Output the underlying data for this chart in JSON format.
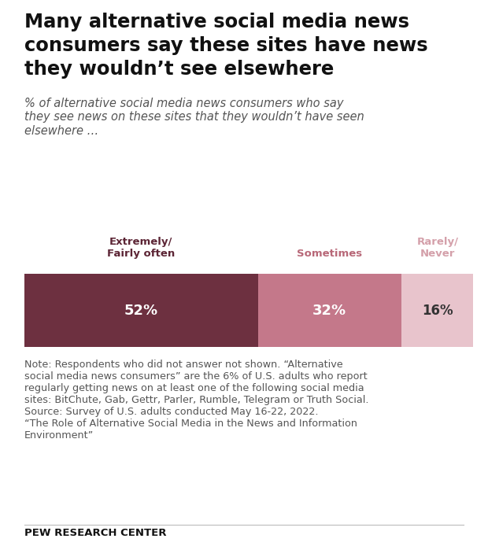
{
  "title_line1": "Many alternative social media news",
  "title_line2": "consumers say these sites have news",
  "title_line3": "they wouldn’t see elsewhere",
  "subtitle": "% of alternative social media news consumers who say\nthey see news on these sites that they wouldn’t have seen\nelsewhere …",
  "categories": [
    "Extremely/\nFairly often",
    "Sometimes",
    "Rarely/\nNever"
  ],
  "values": [
    52,
    32,
    16
  ],
  "colors": [
    "#6d3040",
    "#c4788a",
    "#e8c4cc"
  ],
  "label_colors": [
    "white",
    "white",
    "#333333"
  ],
  "label_texts": [
    "52%",
    "32%",
    "16%"
  ],
  "category_colors": [
    "#5c2535",
    "#b86878",
    "#d4a0aa"
  ],
  "note_text": "Note: Respondents who did not answer not shown. “Alternative\nsocial media news consumers” are the 6% of U.S. adults who report\nregularly getting news on at least one of the following social media\nsites: BitChute, Gab, Gettr, Parler, Rumble, Telegram or Truth Social.\nSource: Survey of U.S. adults conducted May 16-22, 2022.\n“The Role of Alternative Social Media in the News and Information\nEnvironment”",
  "source_label": "PEW RESEARCH CENTER",
  "background_color": "#ffffff",
  "figsize": [
    6.2,
    7.08
  ],
  "dpi": 100
}
